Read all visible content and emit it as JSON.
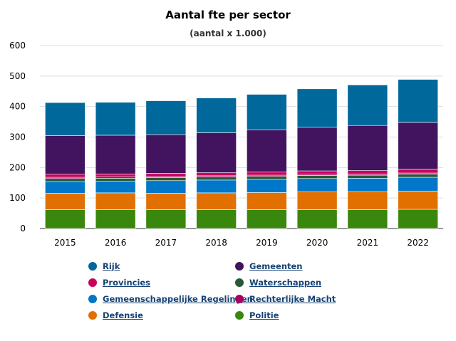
{
  "chart_data": {
    "type": "bar",
    "stacked": true,
    "title": "Aantal fte per sector",
    "subtitle": "(aantal x 1.000)",
    "xlabel": "",
    "ylabel": "",
    "ylim": [
      0,
      600
    ],
    "yticks": [
      0,
      100,
      200,
      300,
      400,
      500,
      600
    ],
    "grid": true,
    "legend_position": "bottom",
    "categories": [
      "2015",
      "2016",
      "2017",
      "2018",
      "2019",
      "2020",
      "2021",
      "2022"
    ],
    "series": [
      {
        "name": "Politie",
        "color": "#39870c",
        "values": [
          62,
          62,
          62,
          62,
          62,
          62,
          62,
          63
        ]
      },
      {
        "name": "Defensie",
        "color": "#e17000",
        "values": [
          54,
          55,
          54,
          55,
          56,
          58,
          59,
          60
        ]
      },
      {
        "name": "Gemeenschappelijke Regelingen",
        "color": "#0077c8",
        "values": [
          38,
          38,
          41,
          42,
          43,
          44,
          44,
          45
        ]
      },
      {
        "name": "Waterschappen",
        "color": "#275937",
        "values": [
          10,
          10,
          10,
          10,
          10,
          10,
          10,
          10
        ]
      },
      {
        "name": "Rechterlijke Macht",
        "color": "#a90061",
        "values": [
          4,
          4,
          4,
          4,
          4,
          4,
          4,
          4
        ]
      },
      {
        "name": "Provincies",
        "color": "#ca005d",
        "values": [
          10,
          10,
          10,
          10,
          10,
          11,
          11,
          12
        ]
      },
      {
        "name": "Gemeenten",
        "color": "#42145f",
        "values": [
          127,
          127,
          127,
          131,
          138,
          143,
          148,
          154
        ]
      },
      {
        "name": "Rijk",
        "color": "#01689b",
        "values": [
          108,
          108,
          111,
          114,
          117,
          126,
          133,
          141
        ]
      }
    ],
    "legend_order": [
      "Rijk",
      "Gemeenten",
      "Provincies",
      "Waterschappen",
      "Gemeenschappelijke Regelingen",
      "Rechterlijke Macht",
      "Defensie",
      "Politie"
    ]
  }
}
